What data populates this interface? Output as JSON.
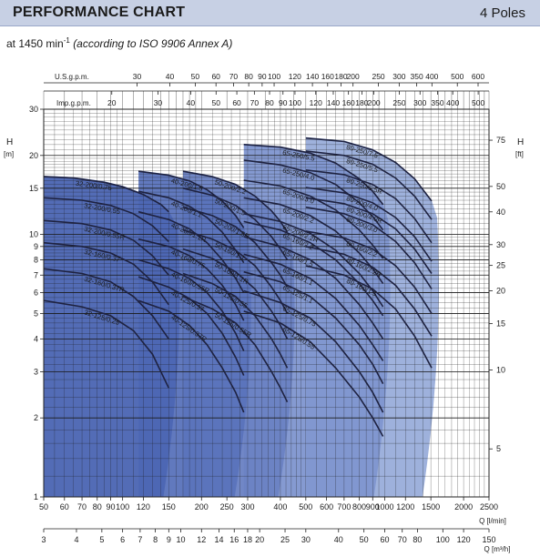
{
  "header": {
    "title": "PERFORMANCE CHART",
    "poles": "4 Poles"
  },
  "subtitle": {
    "prefix": "at 1450 min",
    "superscript": "-1",
    "condition": "(according to ISO 9906 Annex A)"
  },
  "colors": {
    "header_bg": "#c7d0e4",
    "band_darkest": "#4863b0",
    "band_lightest": "#b9c6ea",
    "curve": "#1e2240",
    "grid": "#1b1b1b"
  },
  "chart_data": {
    "type": "line",
    "x_scale": "log",
    "y_scale": "log",
    "xlabel": "Q [l/min]",
    "xlim": [
      50,
      2500
    ],
    "x_ticks": [
      "50",
      "60",
      "70",
      "80",
      "90",
      "100",
      "120",
      "150",
      "200",
      "250",
      "300",
      "400",
      "500",
      "600",
      "700",
      "800",
      "900",
      "1000",
      "1200",
      "1500",
      "2000",
      "2500"
    ],
    "x2label": "Q [m³/h]",
    "x2_ticks": [
      "3",
      "4",
      "5",
      "6",
      "7",
      "8",
      "9",
      "10",
      "12",
      "14",
      "16",
      "18",
      "20",
      "25",
      "30",
      "40",
      "50",
      "60",
      "70",
      "80",
      "100",
      "120",
      "150"
    ],
    "x3label": "U.S.g.p.m.",
    "x3_ticks": [
      "30",
      "40",
      "50",
      "60",
      "70",
      "80",
      "90",
      "100",
      "120",
      "140",
      "160",
      "180",
      "200",
      "250",
      "300",
      "350",
      "400",
      "500",
      "600"
    ],
    "x4label": "Imp.g.p.m.",
    "x4_ticks": [
      "20",
      "30",
      "40",
      "50",
      "60",
      "70",
      "80",
      "90",
      "100",
      "120",
      "140",
      "160",
      "180",
      "200",
      "250",
      "300",
      "350",
      "400",
      "500"
    ],
    "ylabel": "H",
    "yunit": "[m]",
    "ylim": [
      1,
      30
    ],
    "y_ticks": [
      "1",
      "2",
      "3",
      "4",
      "5",
      "6",
      "7",
      "8",
      "9",
      "10",
      "15",
      "20",
      "30"
    ],
    "y2label": "H",
    "y2unit": "[ft]",
    "y2_ticks": [
      "5",
      "10",
      "15",
      "20",
      "25",
      "30",
      "40",
      "50",
      "75"
    ],
    "bands": [
      {
        "name": "32",
        "qmin": 50,
        "qmax": 155
      },
      {
        "name": "40",
        "qmin": 115,
        "qmax": 290
      },
      {
        "name": "50",
        "qmin": 170,
        "qmax": 425
      },
      {
        "name": "65",
        "qmin": 290,
        "qmax": 985
      },
      {
        "name": "80",
        "qmin": 500,
        "qmax": 1510
      }
    ],
    "series": [
      {
        "name": "32-200/0.75",
        "band": 0,
        "q": [
          50,
          65,
          85,
          100,
          120,
          140,
          150
        ],
        "h": [
          16.6,
          16.4,
          15.8,
          15.2,
          14.2,
          13.0,
          12.2
        ]
      },
      {
        "name": "32-200/0.55",
        "band": 0,
        "q": [
          50,
          70,
          90,
          110,
          130,
          150
        ],
        "h": [
          13.8,
          13.5,
          12.9,
          12.0,
          10.8,
          9.4
        ]
      },
      {
        "name": "32-200/0.55R",
        "band": 0,
        "q": [
          50,
          70,
          90,
          110,
          130,
          150
        ],
        "h": [
          11.3,
          11.0,
          10.4,
          9.5,
          8.3,
          7.0
        ]
      },
      {
        "name": "32-160/0.37",
        "band": 0,
        "q": [
          50,
          70,
          90,
          110,
          130,
          150
        ],
        "h": [
          9.3,
          9.0,
          8.5,
          7.7,
          6.6,
          5.4
        ]
      },
      {
        "name": "32-160/0.37R",
        "band": 0,
        "q": [
          50,
          70,
          90,
          110,
          130,
          150
        ],
        "h": [
          7.4,
          7.1,
          6.6,
          5.8,
          4.9,
          4.0
        ]
      },
      {
        "name": "32-125/0.25",
        "band": 0,
        "q": [
          50,
          70,
          90,
          110,
          130,
          150
        ],
        "h": [
          5.6,
          5.3,
          4.9,
          4.3,
          3.5,
          2.6
        ]
      },
      {
        "name": "40-200/1.5",
        "band": 1,
        "q": [
          115,
          150,
          180,
          210,
          240,
          270,
          290
        ],
        "h": [
          17.4,
          16.8,
          16.0,
          14.8,
          13.4,
          11.8,
          10.6
        ]
      },
      {
        "name": "40-200/1.1",
        "band": 1,
        "q": [
          115,
          150,
          180,
          210,
          240,
          270,
          290
        ],
        "h": [
          14.6,
          13.8,
          12.8,
          11.6,
          10.2,
          8.7,
          7.8
        ]
      },
      {
        "name": "40-200/1.1R",
        "band": 1,
        "q": [
          115,
          150,
          180,
          210,
          240,
          270,
          290
        ],
        "h": [
          12.2,
          11.4,
          10.5,
          9.3,
          8.0,
          6.8,
          6.0
        ]
      },
      {
        "name": "40-160/0.75",
        "band": 1,
        "q": [
          115,
          150,
          180,
          210,
          240,
          270,
          290
        ],
        "h": [
          9.6,
          9.0,
          8.3,
          7.4,
          6.4,
          5.4,
          4.7
        ]
      },
      {
        "name": "40-160/0.55R",
        "band": 1,
        "q": [
          115,
          150,
          180,
          210,
          240,
          270,
          290
        ],
        "h": [
          8.0,
          7.4,
          6.8,
          6.0,
          5.1,
          4.2,
          3.6
        ]
      },
      {
        "name": "40-125/0.37",
        "band": 1,
        "q": [
          115,
          150,
          180,
          210,
          240,
          270,
          290
        ],
        "h": [
          6.9,
          6.3,
          5.7,
          5.0,
          4.2,
          3.4,
          2.9
        ]
      },
      {
        "name": "40-125/0.37R",
        "band": 1,
        "q": [
          115,
          150,
          180,
          210,
          240,
          270,
          290
        ],
        "h": [
          5.6,
          5.1,
          4.5,
          3.8,
          3.1,
          2.5,
          2.1
        ]
      },
      {
        "name": "50-200/2.2",
        "band": 2,
        "q": [
          170,
          220,
          270,
          320,
          370,
          400,
          425
        ],
        "h": [
          17.4,
          16.6,
          15.5,
          14.0,
          12.3,
          11.2,
          10.2
        ]
      },
      {
        "name": "50-200/1.5",
        "band": 2,
        "q": [
          170,
          220,
          270,
          320,
          370,
          400,
          425
        ],
        "h": [
          15.0,
          14.1,
          12.9,
          11.4,
          9.8,
          8.8,
          8.0
        ]
      },
      {
        "name": "50-200/1.5R",
        "band": 2,
        "q": [
          170,
          220,
          270,
          320,
          370,
          400,
          425
        ],
        "h": [
          12.7,
          11.8,
          10.7,
          9.3,
          7.8,
          7.0,
          6.3
        ]
      },
      {
        "name": "50-160/1.1",
        "band": 2,
        "q": [
          170,
          220,
          270,
          320,
          370,
          400,
          425
        ],
        "h": [
          10.4,
          9.6,
          8.7,
          7.6,
          6.3,
          5.6,
          5.0
        ]
      },
      {
        "name": "50-160/1.1R",
        "band": 2,
        "q": [
          170,
          220,
          270,
          320,
          370,
          400,
          425
        ],
        "h": [
          8.8,
          8.1,
          7.2,
          6.2,
          5.1,
          4.5,
          4.0
        ]
      },
      {
        "name": "50-125/0.55",
        "band": 2,
        "q": [
          170,
          220,
          270,
          320,
          370,
          400,
          425
        ],
        "h": [
          7.1,
          6.5,
          5.8,
          4.9,
          4.0,
          3.5,
          3.1
        ]
      },
      {
        "name": "50-125/0.55R",
        "band": 2,
        "q": [
          170,
          220,
          270,
          320,
          370,
          400,
          425
        ],
        "h": [
          5.8,
          5.2,
          4.6,
          3.8,
          3.0,
          2.6,
          2.3
        ]
      },
      {
        "name": "65-250/5.5",
        "band": 3,
        "q": [
          290,
          400,
          520,
          650,
          800,
          900,
          985
        ],
        "h": [
          22.0,
          21.5,
          20.4,
          18.7,
          16.3,
          14.6,
          13.0
        ]
      },
      {
        "name": "65-250/4.0",
        "band": 3,
        "q": [
          290,
          400,
          520,
          650,
          800,
          900,
          985
        ],
        "h": [
          19.2,
          18.4,
          17.2,
          15.5,
          13.2,
          11.7,
          10.4
        ]
      },
      {
        "name": "65-200/3.0",
        "band": 3,
        "q": [
          290,
          400,
          520,
          650,
          800,
          900,
          985
        ],
        "h": [
          16.1,
          15.3,
          14.0,
          12.4,
          10.4,
          9.1,
          8.1
        ]
      },
      {
        "name": "65-200/2.2",
        "band": 3,
        "q": [
          290,
          400,
          520,
          650,
          800,
          900,
          985
        ],
        "h": [
          13.8,
          13.0,
          11.8,
          10.3,
          8.5,
          7.4,
          6.5
        ]
      },
      {
        "name": "65-200/2.2R",
        "band": 3,
        "q": [
          290,
          400,
          520,
          650,
          800,
          900,
          985
        ],
        "h": [
          12.0,
          11.2,
          10.1,
          8.7,
          7.1,
          6.1,
          5.3
        ]
      },
      {
        "name": "65-160/2.2",
        "band": 3,
        "q": [
          290,
          400,
          520,
          650,
          800,
          900,
          985
        ],
        "h": [
          11.2,
          10.4,
          9.3,
          8.0,
          6.5,
          5.6,
          4.9
        ]
      },
      {
        "name": "65-160/1.5",
        "band": 3,
        "q": [
          290,
          400,
          520,
          650,
          800,
          900,
          985
        ],
        "h": [
          9.8,
          9.0,
          8.0,
          6.8,
          5.4,
          4.6,
          4.0
        ]
      },
      {
        "name": "65-160/1.1",
        "band": 3,
        "q": [
          290,
          400,
          520,
          650,
          800,
          900,
          985
        ],
        "h": [
          8.4,
          7.7,
          6.8,
          5.7,
          4.5,
          3.8,
          3.3
        ]
      },
      {
        "name": "65-125/1.1",
        "band": 3,
        "q": [
          290,
          400,
          520,
          650,
          800,
          900,
          985
        ],
        "h": [
          7.2,
          6.6,
          5.8,
          4.8,
          3.8,
          3.2,
          2.7
        ]
      },
      {
        "name": "65-125/0.75",
        "band": 3,
        "q": [
          290,
          400,
          520,
          650,
          800,
          900,
          985
        ],
        "h": [
          6.1,
          5.5,
          4.8,
          3.9,
          3.0,
          2.5,
          2.1
        ]
      },
      {
        "name": "65-125/0.55",
        "band": 3,
        "q": [
          290,
          400,
          520,
          650,
          800,
          900,
          985
        ],
        "h": [
          5.1,
          4.6,
          3.9,
          3.1,
          2.4,
          2.0,
          1.7
        ]
      },
      {
        "name": "80-250/7.5",
        "band": 4,
        "q": [
          500,
          700,
          900,
          1100,
          1300,
          1510
        ],
        "h": [
          23.3,
          22.6,
          21.0,
          18.8,
          16.3,
          13.4
        ]
      },
      {
        "name": "80-250/5.5",
        "band": 4,
        "q": [
          500,
          700,
          900,
          1100,
          1300,
          1510
        ],
        "h": [
          20.8,
          20.0,
          18.5,
          16.4,
          14.0,
          11.4
        ]
      },
      {
        "name": "80-250/5.5R",
        "band": 4,
        "q": [
          500,
          700,
          900,
          1100,
          1300,
          1510
        ],
        "h": [
          17.6,
          16.9,
          15.5,
          13.7,
          11.5,
          9.3
        ]
      },
      {
        "name": "80-200/4.0",
        "band": 4,
        "q": [
          500,
          700,
          900,
          1100,
          1300,
          1510
        ],
        "h": [
          15.1,
          14.4,
          13.2,
          11.6,
          9.8,
          7.9
        ]
      },
      {
        "name": "80-200/3.0",
        "band": 4,
        "q": [
          500,
          700,
          900,
          1100,
          1300,
          1510
        ],
        "h": [
          12.7,
          12.0,
          10.9,
          9.4,
          7.8,
          6.2
        ]
      },
      {
        "name": "80-200/4.0R",
        "band": 4,
        "q": [
          500,
          700,
          900,
          1100,
          1300,
          1510
        ],
        "h": [
          13.8,
          13.1,
          12.0,
          10.5,
          8.8,
          7.1
        ]
      },
      {
        "name": "80-160/2.2",
        "band": 4,
        "q": [
          500,
          700,
          900,
          1100,
          1300,
          1510
        ],
        "h": [
          10.3,
          9.7,
          8.8,
          7.6,
          6.3,
          5.0
        ]
      },
      {
        "name": "80-160/2.2R",
        "band": 4,
        "q": [
          500,
          700,
          900,
          1100,
          1300,
          1510
        ],
        "h": [
          9.0,
          8.4,
          7.5,
          6.4,
          5.2,
          4.1
        ]
      },
      {
        "name": "80-160/1.5",
        "band": 4,
        "q": [
          500,
          700,
          900,
          1100,
          1300,
          1510
        ],
        "h": [
          7.6,
          7.0,
          6.2,
          5.2,
          4.1,
          3.1
        ]
      }
    ]
  }
}
